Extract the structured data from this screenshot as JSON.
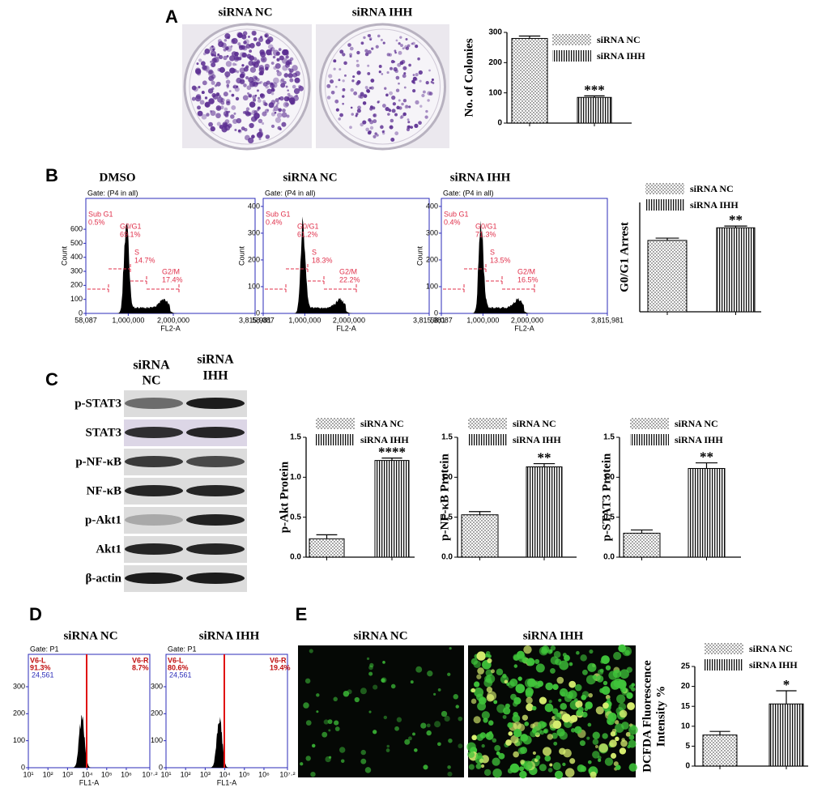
{
  "figure": {
    "panel_letters": [
      "A",
      "B",
      "C",
      "D",
      "E"
    ],
    "colony_labels": [
      "siRNA NC",
      "siRNA IHH"
    ],
    "blot_columns": [
      [
        "siRNA",
        "NC"
      ],
      [
        "siRNA",
        "IHH"
      ]
    ],
    "blot_rows": [
      "p-STAT3",
      "STAT3",
      "p-NF-κB",
      "NF-κB",
      "p-Akt1",
      "Akt1",
      "β-actin"
    ],
    "fluorescence_labels": [
      "siRNA NC",
      "siRNA IHH"
    ]
  },
  "chart_data": [
    {
      "type": "bar",
      "ylabel": "No. of Colonies",
      "ylim": [
        0,
        300
      ],
      "yticks": [
        0,
        100,
        200,
        300
      ],
      "categories": [
        null
      ],
      "series": [
        {
          "name": "siRNA NC",
          "pattern": "dots",
          "values": [
            280
          ],
          "errors": [
            8
          ]
        },
        {
          "name": "siRNA IHH",
          "pattern": "vlines",
          "values": [
            85
          ],
          "errors": [
            5
          ]
        }
      ],
      "annotation": "***"
    },
    {
      "type": "flow",
      "title": "DMSO",
      "gate": "Gate: (P4 in all)",
      "xlabel": "FL2-A",
      "ylabel": "Count",
      "xlim": [
        58087,
        3815981
      ],
      "xticks": [
        {
          "value": 58087,
          "label": "58,087"
        },
        {
          "value": 1000000,
          "label": "1,000,000"
        },
        {
          "value": 2000000,
          "label": "2,000,000"
        },
        {
          "value": 3815981,
          "label": "3,815,981"
        }
      ],
      "ylim": [
        0,
        820
      ],
      "yticks": [
        0,
        100,
        200,
        300,
        400,
        500,
        600
      ],
      "gates": [
        "Sub G1",
        "G0/G1",
        "S",
        "G2/M"
      ],
      "values": [
        0.5,
        69.1,
        14.7,
        17.4
      ],
      "value_labels": [
        "0.5%",
        "69.1%",
        "14.7%",
        "17.4%"
      ]
    },
    {
      "type": "flow",
      "title": "siRNA NC",
      "gate": "Gate: (P4 in all)",
      "xlabel": "FL2-A",
      "ylabel": "Count",
      "xlim": [
        58087,
        3815981
      ],
      "xticks": [
        {
          "value": 58087,
          "label": "58,087"
        },
        {
          "value": 1000000,
          "label": "1,000,000"
        },
        {
          "value": 2000000,
          "label": "2,000,000"
        },
        {
          "value": 3815981,
          "label": "3,815,981"
        }
      ],
      "ylim": [
        0,
        430
      ],
      "yticks": [
        0,
        100,
        200,
        300,
        400
      ],
      "gates": [
        "Sub G1",
        "G0/G1",
        "S",
        "G2/M"
      ],
      "values": [
        0.4,
        61.2,
        18.3,
        22.2
      ],
      "value_labels": [
        "0.4%",
        "61.2%",
        "18.3%",
        "22.2%"
      ]
    },
    {
      "type": "flow",
      "title": "siRNA IHH",
      "gate": "Gate: (P4 in all)",
      "xlabel": "FL2-A",
      "ylabel": "Count",
      "xlim": [
        58087,
        3815981
      ],
      "xticks": [
        {
          "value": 58087,
          "label": "58,087"
        },
        {
          "value": 1000000,
          "label": "1,000,000"
        },
        {
          "value": 2000000,
          "label": "2,000,000"
        },
        {
          "value": 3815981,
          "label": "3,815,981"
        }
      ],
      "ylim": [
        0,
        430
      ],
      "yticks": [
        0,
        100,
        200,
        300,
        400
      ],
      "gates": [
        "Sub G1",
        "G0/G1",
        "S",
        "G2/M"
      ],
      "values": [
        0.4,
        71.3,
        13.5,
        16.5
      ],
      "value_labels": [
        "0.4%",
        "71.3%",
        "13.5%",
        "16.5%"
      ]
    },
    {
      "type": "bar",
      "ylabel": "G0/G1 Arrest",
      "ylim": [
        0,
        95
      ],
      "categories": [
        null
      ],
      "series": [
        {
          "name": "siRNA NC",
          "pattern": "dots",
          "values": [
            62
          ],
          "errors": [
            2
          ]
        },
        {
          "name": "siRNA IHH",
          "pattern": "vlines",
          "values": [
            73
          ],
          "errors": [
            1.5
          ]
        }
      ],
      "annotation": "**"
    },
    {
      "type": "bar",
      "ylabel": "p-Akt Protein",
      "ylim": [
        0,
        1.5
      ],
      "yticks": [
        {
          "value": 0,
          "label": "0.0"
        },
        0.5,
        {
          "value": 1,
          "label": "1.0"
        },
        1.5
      ],
      "categories": [
        null
      ],
      "series": [
        {
          "name": "siRNA NC",
          "pattern": "dots",
          "values": [
            0.23
          ],
          "errors": [
            0.05
          ]
        },
        {
          "name": "siRNA IHH",
          "pattern": "vlines",
          "values": [
            1.21
          ],
          "errors": [
            0.03
          ]
        }
      ],
      "annotation": "****"
    },
    {
      "type": "bar",
      "ylabel": "p-NF-κB Protein",
      "ylim": [
        0,
        1.5
      ],
      "yticks": [
        {
          "value": 0,
          "label": "0.0"
        },
        0.5,
        {
          "value": 1,
          "label": "1.0"
        },
        1.5
      ],
      "categories": [
        null
      ],
      "series": [
        {
          "name": "siRNA NC",
          "pattern": "dots",
          "values": [
            0.53
          ],
          "errors": [
            0.04
          ]
        },
        {
          "name": "siRNA IHH",
          "pattern": "vlines",
          "values": [
            1.13
          ],
          "errors": [
            0.04
          ]
        }
      ],
      "annotation": "**"
    },
    {
      "type": "bar",
      "ylabel": "p-STAT3 Protein",
      "ylim": [
        0,
        1.5
      ],
      "yticks": [
        {
          "value": 0,
          "label": "0.0"
        },
        0.5,
        {
          "value": 1,
          "label": "1.0"
        },
        1.5
      ],
      "categories": [
        null
      ],
      "series": [
        {
          "name": "siRNA NC",
          "pattern": "dots",
          "values": [
            0.3
          ],
          "errors": [
            0.04
          ]
        },
        {
          "name": "siRNA IHH",
          "pattern": "vlines",
          "values": [
            1.11
          ],
          "errors": [
            0.07
          ]
        }
      ],
      "annotation": "**"
    },
    {
      "type": "flow",
      "title": "siRNA NC",
      "gate": "Gate: P1",
      "events": {
        "value": 24561,
        "label": "24,561"
      },
      "xlabel": "FL1-A",
      "xscale": "log",
      "xlim": [
        10,
        15848932
      ],
      "xticks": [
        {
          "value": 10,
          "label": "10¹"
        },
        {
          "value": 100,
          "label": "10²"
        },
        {
          "value": 1000,
          "label": "10³"
        },
        {
          "value": 10000,
          "label": "10⁴"
        },
        {
          "value": 100000,
          "label": "10⁵"
        },
        {
          "value": 1000000,
          "label": "10⁶"
        },
        {
          "value": 15848932,
          "label": "10⁷·²"
        }
      ],
      "ylim": [
        0,
        420
      ],
      "yticks": [
        0,
        100,
        200,
        300
      ],
      "gates": [
        "V6-L",
        "V6-R"
      ],
      "values": [
        91.3,
        8.7
      ],
      "value_labels": [
        "91.3%",
        "8.7%"
      ]
    },
    {
      "type": "flow",
      "title": "siRNA IHH",
      "gate": "Gate: P1",
      "events": {
        "value": 24561,
        "label": "24,561"
      },
      "xlabel": "FL1-A",
      "xscale": "log",
      "xlim": [
        10,
        15848932
      ],
      "xticks": [
        {
          "value": 10,
          "label": "10¹"
        },
        {
          "value": 100,
          "label": "10²"
        },
        {
          "value": 1000,
          "label": "10³"
        },
        {
          "value": 10000,
          "label": "10⁴"
        },
        {
          "value": 100000,
          "label": "10⁵"
        },
        {
          "value": 1000000,
          "label": "10⁶"
        },
        {
          "value": 15848932,
          "label": "10⁷·²"
        }
      ],
      "ylim": [
        0,
        420
      ],
      "yticks": [
        0,
        100,
        200,
        300
      ],
      "gates": [
        "V6-L",
        "V6-R"
      ],
      "values": [
        80.6,
        19.4
      ],
      "value_labels": [
        "80.6%",
        "19.4%"
      ]
    },
    {
      "type": "bar",
      "ylabel": [
        "DCFDA Fluorescence",
        "Intensity %"
      ],
      "ylim": [
        0,
        25
      ],
      "yticks": [
        0,
        5,
        10,
        15,
        20,
        25
      ],
      "categories": [
        null
      ],
      "series": [
        {
          "name": "siRNA NC",
          "pattern": "dots",
          "values": [
            7.8
          ],
          "errors": [
            0.9
          ]
        },
        {
          "name": "siRNA IHH",
          "pattern": "vlines",
          "values": [
            15.6
          ],
          "errors": [
            3.3
          ]
        }
      ],
      "annotation": "*"
    }
  ]
}
